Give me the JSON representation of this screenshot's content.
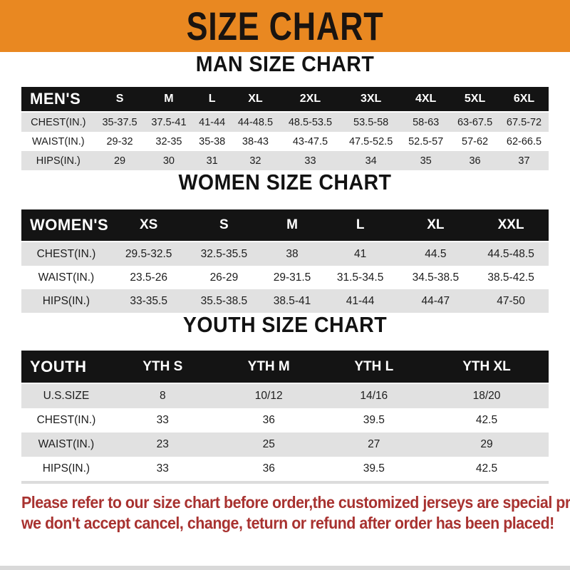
{
  "banner": {
    "title": "SIZE CHART",
    "bg_color": "#E98821",
    "text_color": "#1A1410"
  },
  "sections": [
    {
      "heading": "MAN SIZE CHART",
      "corner_label": "MEN'S",
      "columns": [
        "S",
        "M",
        "L",
        "XL",
        "2XL",
        "3XL",
        "4XL",
        "5XL",
        "6XL"
      ],
      "rows": [
        {
          "label": "CHEST(IN.)",
          "values": [
            "35-37.5",
            "37.5-41",
            "41-44",
            "44-48.5",
            "48.5-53.5",
            "53.5-58",
            "58-63",
            "63-67.5",
            "67.5-72"
          ]
        },
        {
          "label": "WAIST(IN.)",
          "values": [
            "29-32",
            "32-35",
            "35-38",
            "38-43",
            "43-47.5",
            "47.5-52.5",
            "52.5-57",
            "57-62",
            "62-66.5"
          ]
        },
        {
          "label": "HIPS(IN.)",
          "values": [
            "29",
            "30",
            "31",
            "32",
            "33",
            "34",
            "35",
            "36",
            "37"
          ]
        }
      ]
    },
    {
      "heading": "WOMEN SIZE CHART",
      "corner_label": "WOMEN'S",
      "columns": [
        "XS",
        "S",
        "M",
        "L",
        "XL",
        "XXL"
      ],
      "rows": [
        {
          "label": "CHEST(IN.)",
          "values": [
            "29.5-32.5",
            "32.5-35.5",
            "38",
            "41",
            "44.5",
            "44.5-48.5"
          ]
        },
        {
          "label": "WAIST(IN.)",
          "values": [
            "23.5-26",
            "26-29",
            "29-31.5",
            "31.5-34.5",
            "34.5-38.5",
            "38.5-42.5"
          ]
        },
        {
          "label": "HIPS(IN.)",
          "values": [
            "33-35.5",
            "35.5-38.5",
            "38.5-41",
            "41-44",
            "44-47",
            "47-50"
          ]
        }
      ]
    },
    {
      "heading": "YOUTH SIZE CHART",
      "corner_label": "YOUTH",
      "columns": [
        "YTH S",
        "YTH M",
        "YTH L",
        "YTH XL"
      ],
      "rows": [
        {
          "label": "U.S.SIZE",
          "values": [
            "8",
            "10/12",
            "14/16",
            "18/20"
          ]
        },
        {
          "label": "CHEST(IN.)",
          "values": [
            "33",
            "36",
            "39.5",
            "42.5"
          ]
        },
        {
          "label": "WAIST(IN.)",
          "values": [
            "23",
            "25",
            "27",
            "29"
          ]
        },
        {
          "label": "HIPS(IN.)",
          "values": [
            "33",
            "36",
            "39.5",
            "42.5"
          ]
        }
      ]
    }
  ],
  "colors": {
    "header_bar": "#141414",
    "stripe_row": "#E1E1E1",
    "footer_text": "#A83230"
  },
  "footer": {
    "line1": "Please refer to our size chart before order,the customized jerseys are special products,",
    "line2": "we don't accept cancel, change, teturn or refund after order has been placed!"
  }
}
